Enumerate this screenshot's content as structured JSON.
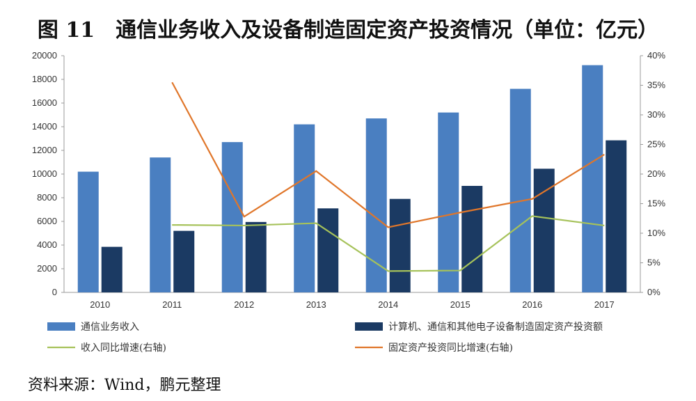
{
  "header": {
    "title": "图 11　通信业务收入及设备制造固定资产投资情况（单位：亿元）"
  },
  "footer": {
    "source": "资料来源：Wind，鹏元整理"
  },
  "chart_data": {
    "type": "bar",
    "title": "图 11　通信业务收入及设备制造固定资产投资情况（单位：亿元）",
    "categories": [
      "2010",
      "2011",
      "2012",
      "2013",
      "2014",
      "2015",
      "2016",
      "2017"
    ],
    "ylim": [
      0,
      20000
    ],
    "y_ticks": [
      "0",
      "2000",
      "4000",
      "6000",
      "8000",
      "10000",
      "12000",
      "14000",
      "16000",
      "18000",
      "20000"
    ],
    "y2lim": [
      0,
      40
    ],
    "y2_ticks": [
      "0%",
      "5%",
      "10%",
      "15%",
      "20%",
      "25%",
      "30%",
      "35%",
      "40%"
    ],
    "series": [
      {
        "name": "通信业务收入",
        "kind": "bar",
        "axis": "left",
        "color": "#4a7fc1",
        "values": [
          10200,
          11400,
          12700,
          14200,
          14700,
          15200,
          17200,
          19200
        ]
      },
      {
        "name": "计算机、通信和其他电子设备制造固定资产投资额",
        "kind": "bar",
        "axis": "left",
        "color": "#1b3a63",
        "values": [
          3850,
          5200,
          5950,
          7100,
          7900,
          9000,
          10450,
          12850
        ]
      },
      {
        "name": "收入同比增速(右轴)",
        "kind": "line",
        "axis": "right",
        "color": "#a6c25a",
        "values": [
          null,
          11.4,
          11.3,
          11.7,
          3.6,
          3.7,
          12.9,
          11.3
        ]
      },
      {
        "name": "固定资产投资同比增速(右轴)",
        "kind": "line",
        "axis": "right",
        "color": "#e0762a",
        "values": [
          null,
          35.5,
          12.8,
          20.5,
          11.0,
          13.5,
          15.8,
          23.3
        ]
      }
    ],
    "legend_position": "bottom"
  }
}
